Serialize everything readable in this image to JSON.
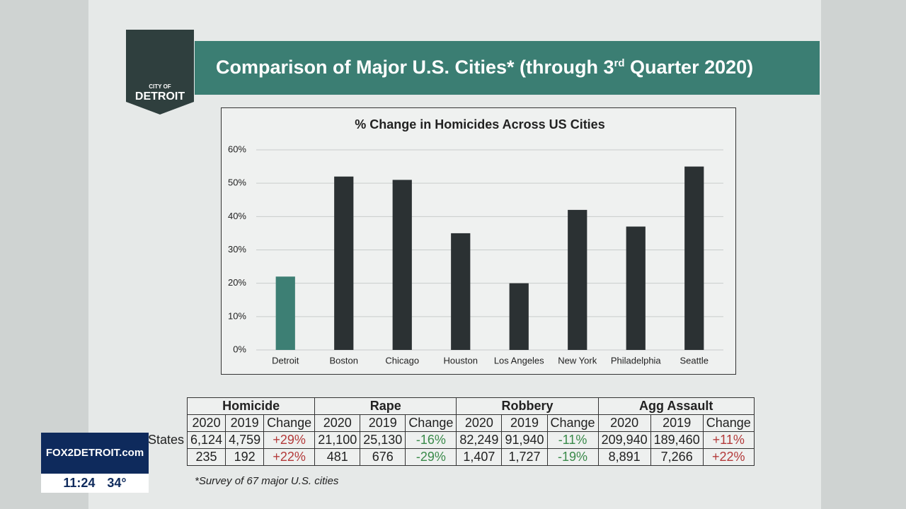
{
  "header": {
    "logo_top": "CITY OF",
    "logo_bottom": "DETROIT",
    "title_start": "Comparison of Major U.S. Cities* (through 3",
    "title_sup": "rd",
    "title_end": "Quarter 2020)"
  },
  "chart_data": {
    "type": "bar",
    "title": "% Change in Homicides Across US Cities",
    "categories": [
      "Detroit",
      "Boston",
      "Chicago",
      "Houston",
      "Los Angeles",
      "New York",
      "Philadelphia",
      "Seattle"
    ],
    "values": [
      22,
      52,
      51,
      35,
      20,
      42,
      37,
      55
    ],
    "colors": [
      "#3d7f74",
      "#2b3133",
      "#2b3133",
      "#2b3133",
      "#2b3133",
      "#2b3133",
      "#2b3133",
      "#2b3133"
    ],
    "ylim": [
      0,
      60
    ],
    "yticks": [
      {
        "value": 0,
        "label": "0%"
      },
      {
        "value": 10,
        "label": "10%"
      },
      {
        "value": 20,
        "label": "20%"
      },
      {
        "value": 30,
        "label": "30%"
      },
      {
        "value": 40,
        "label": "40%"
      },
      {
        "value": 50,
        "label": "50%"
      },
      {
        "value": 60,
        "label": "60%"
      }
    ],
    "grid": true
  },
  "table": {
    "groups": [
      "Homicide",
      "Rape",
      "Robbery",
      "Agg Assault"
    ],
    "columns": [
      "2020",
      "2019",
      "Change"
    ],
    "row_label": "States",
    "rows": [
      [
        "6,124",
        "4,759",
        "+29%",
        "21,100",
        "25,130",
        "-16%",
        "82,249",
        "91,940",
        "-11%",
        "209,940",
        "189,460",
        "+11%"
      ],
      [
        "235",
        "192",
        "+22%",
        "481",
        "676",
        "-29%",
        "1,407",
        "1,727",
        "-19%",
        "8,891",
        "7,266",
        "+22%"
      ]
    ]
  },
  "footnote": "*Survey of 67 major U.S. cities",
  "overlay": {
    "station": "FOX2DETROIT.com",
    "time": "11:24",
    "temperature": "34°"
  }
}
